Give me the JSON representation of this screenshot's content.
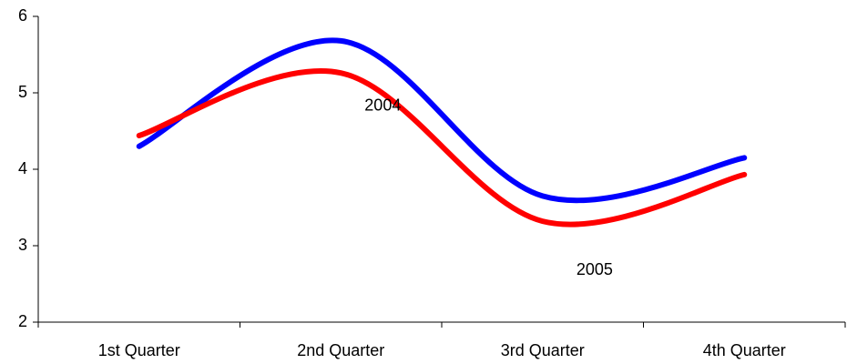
{
  "chart_data": {
    "type": "line",
    "smooth": true,
    "categories": [
      "1st Quarter",
      "2nd Quarter",
      "3rd Quarter",
      "4th Quarter"
    ],
    "series": [
      {
        "name": "2004",
        "color": "#0000ff",
        "values": [
          4.3,
          5.68,
          3.65,
          4.15
        ]
      },
      {
        "name": "2005",
        "color": "#ff0000",
        "values": [
          4.44,
          5.26,
          3.32,
          3.93
        ]
      }
    ],
    "ylim": [
      2,
      6
    ],
    "yticks": [
      2,
      3,
      4,
      5,
      6
    ],
    "grid": false
  }
}
